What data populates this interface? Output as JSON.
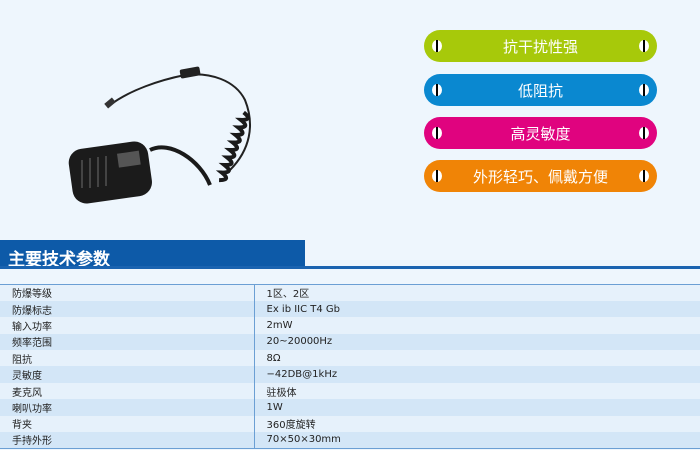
{
  "features": [
    {
      "label": "抗干扰性强",
      "color": "#a7c90a"
    },
    {
      "label": "低阻抗",
      "color": "#0a88d0"
    },
    {
      "label": "高灵敏度",
      "color": "#e0037f"
    },
    {
      "label": "外形轻巧、佩戴方便",
      "color": "#f08406"
    }
  ],
  "section_title": "主要技术参数",
  "specs": [
    [
      "防爆等级",
      "1区、2区"
    ],
    [
      "防爆标志",
      "Ex ib IIC T4 Gb"
    ],
    [
      "输入功率",
      "2mW"
    ],
    [
      "频率范围",
      "20~20000Hz"
    ],
    [
      "阻抗",
      "8Ω"
    ],
    [
      "灵敏度",
      "−42DB@1kHz"
    ],
    [
      "麦克风",
      "驻极体"
    ],
    [
      "喇叭功率",
      "1W"
    ],
    [
      "背夹",
      "360度旋转"
    ],
    [
      "手持外形",
      "70×50×30mm"
    ]
  ]
}
